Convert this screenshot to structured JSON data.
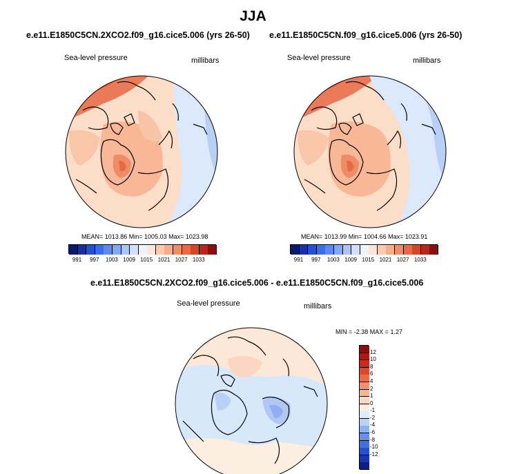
{
  "page": {
    "title": "JJA"
  },
  "panels": [
    {
      "run": "e.e11.E1850C5CN.2XCO2.f09_g16.cice5.006 (yrs 26-50)",
      "variable": "Sea-level pressure",
      "units": "millibars",
      "stats": "MEAN= 1013.86   Min= 1005.03   Max= 1023.98"
    },
    {
      "run": "e.e11.E1850C5CN.f09_g16.cice5.006 (yrs 26-50)",
      "variable": "Sea-level pressure",
      "units": "millibars",
      "stats": "MEAN= 1013.99   Min= 1004.66   Max= 1023.91"
    },
    {
      "run": "e.e11.E1850C5CN.2XCO2.f09_g16.cice5.006 - e.e11.E1850C5CN.f09_g16.cice5.006",
      "variable": "Sea-level pressure",
      "units": "millibars",
      "stats": "MIN =  -2.38 MAX =   1.27"
    }
  ],
  "colorbars": {
    "absolute": {
      "ticks": [
        "991",
        "997",
        "1003",
        "1009",
        "1015",
        "1021",
        "1027",
        "1033"
      ],
      "colors": [
        "#0a1a6e",
        "#1530a8",
        "#2450d8",
        "#3a6ee8",
        "#5a8af0",
        "#82a8f4",
        "#aac4f8",
        "#d0e0fb",
        "#eef3fd",
        "#fde6d8",
        "#fbcbb0",
        "#f8ad8a",
        "#f28c66",
        "#ea6a44",
        "#d64528",
        "#b8261a",
        "#8a0f0f"
      ]
    },
    "difference": {
      "ticks": [
        "12",
        "10",
        "8",
        "6",
        "4",
        "2",
        "1",
        "0",
        "-1",
        "-2",
        "-4",
        "-6",
        "-8",
        "-10",
        "-12"
      ],
      "colors": [
        "#8a0f0f",
        "#b01818",
        "#cc2a1c",
        "#e0482c",
        "#ee6a48",
        "#f49070",
        "#f8b496",
        "#fbd6c0",
        "#fdeee2",
        "#deecfb",
        "#b8d2f8",
        "#8eb2f2",
        "#6690ec",
        "#4470e2",
        "#2a50d0",
        "#1a36b0",
        "#0c1e88"
      ]
    }
  }
}
